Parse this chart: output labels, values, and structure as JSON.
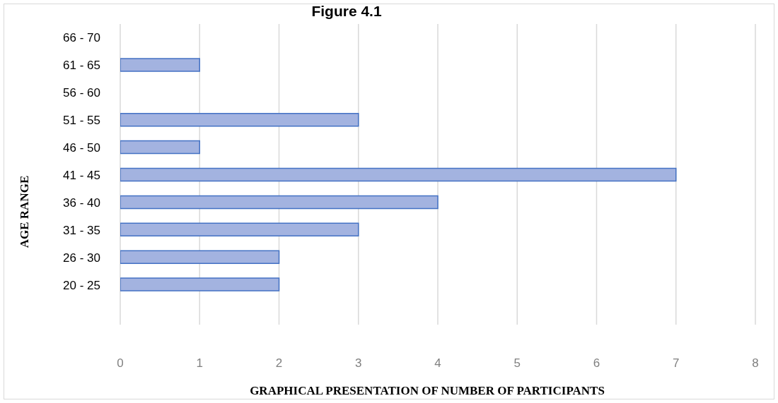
{
  "chart_data": {
    "type": "bar",
    "orientation": "horizontal",
    "title": "Figure 4.1",
    "xlabel": "GRAPHICAL PRESENTATION OF NUMBER OF PARTICIPANTS",
    "ylabel": "AGE RANGE",
    "categories": [
      "66 - 70",
      "61 - 65",
      "56 - 60",
      "51 - 55",
      "46 - 50",
      "41 - 45",
      "36 - 40",
      "31 - 35",
      "26 - 30",
      "20 - 25"
    ],
    "values": [
      0,
      1,
      0,
      3,
      1,
      7,
      4,
      3,
      2,
      2
    ],
    "color": "#a3b3e0",
    "xlim": [
      0,
      8
    ],
    "xticks": [
      0,
      1,
      2,
      3,
      4,
      5,
      6,
      7,
      8
    ],
    "grid": "x",
    "legend": false
  }
}
